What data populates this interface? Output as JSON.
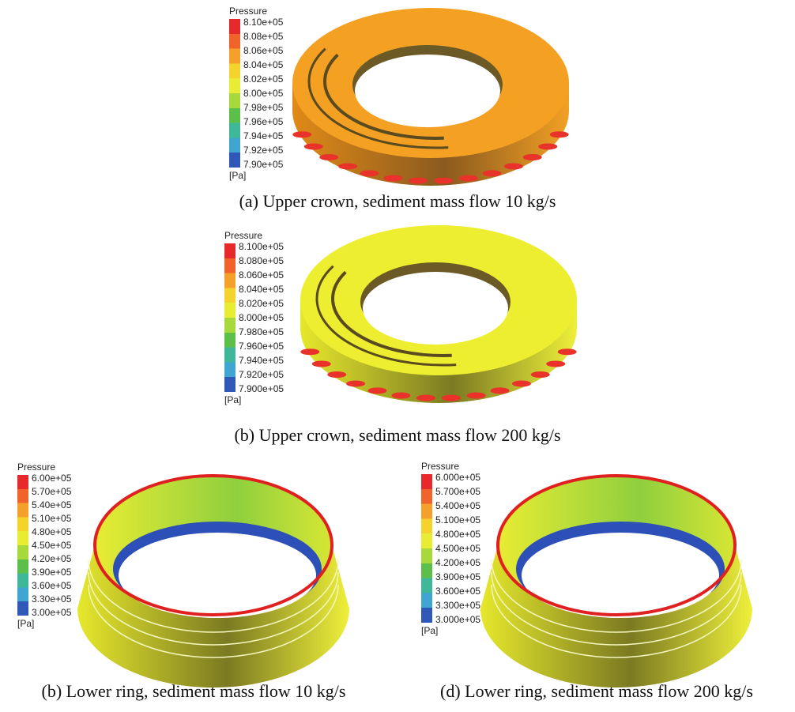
{
  "panels": [
    {
      "legend": {
        "title": "Pressure",
        "ticks": [
          "8.10e+05",
          "8.08e+05",
          "8.06e+05",
          "8.04e+05",
          "8.02e+05",
          "8.00e+05",
          "7.98e+05",
          "7.96e+05",
          "7.94e+05",
          "7.92e+05",
          "7.90e+05"
        ],
        "unit": "[Pa]"
      },
      "caption": "(a) Upper crown, sediment mass flow 10 kg/s"
    },
    {
      "legend": {
        "title": "Pressure",
        "ticks": [
          "8.100e+05",
          "8.080e+05",
          "8.060e+05",
          "8.040e+05",
          "8.020e+05",
          "8.000e+05",
          "7.980e+05",
          "7.960e+05",
          "7.940e+05",
          "7.920e+05",
          "7.900e+05"
        ],
        "unit": "[Pa]"
      },
      "caption": "(b) Upper crown, sediment mass flow 200 kg/s"
    },
    {
      "legend": {
        "title": "Pressure",
        "ticks": [
          "6.00e+05",
          "5.70e+05",
          "5.40e+05",
          "5.10e+05",
          "4.80e+05",
          "4.50e+05",
          "4.20e+05",
          "3.90e+05",
          "3.60e+05",
          "3.30e+05",
          "3.00e+05"
        ],
        "unit": "[Pa]"
      },
      "caption": "(b) Lower ring, sediment mass flow 10 kg/s"
    },
    {
      "legend": {
        "title": "Pressure",
        "ticks": [
          "6.000e+05",
          "5.700e+05",
          "5.400e+05",
          "5.100e+05",
          "4.800e+05",
          "4.500e+05",
          "4.200e+05",
          "3.900e+05",
          "3.600e+05",
          "3.300e+05",
          "3.000e+05"
        ],
        "unit": "[Pa]"
      },
      "caption": "(d) Lower ring, sediment mass flow 200 kg/s"
    }
  ]
}
